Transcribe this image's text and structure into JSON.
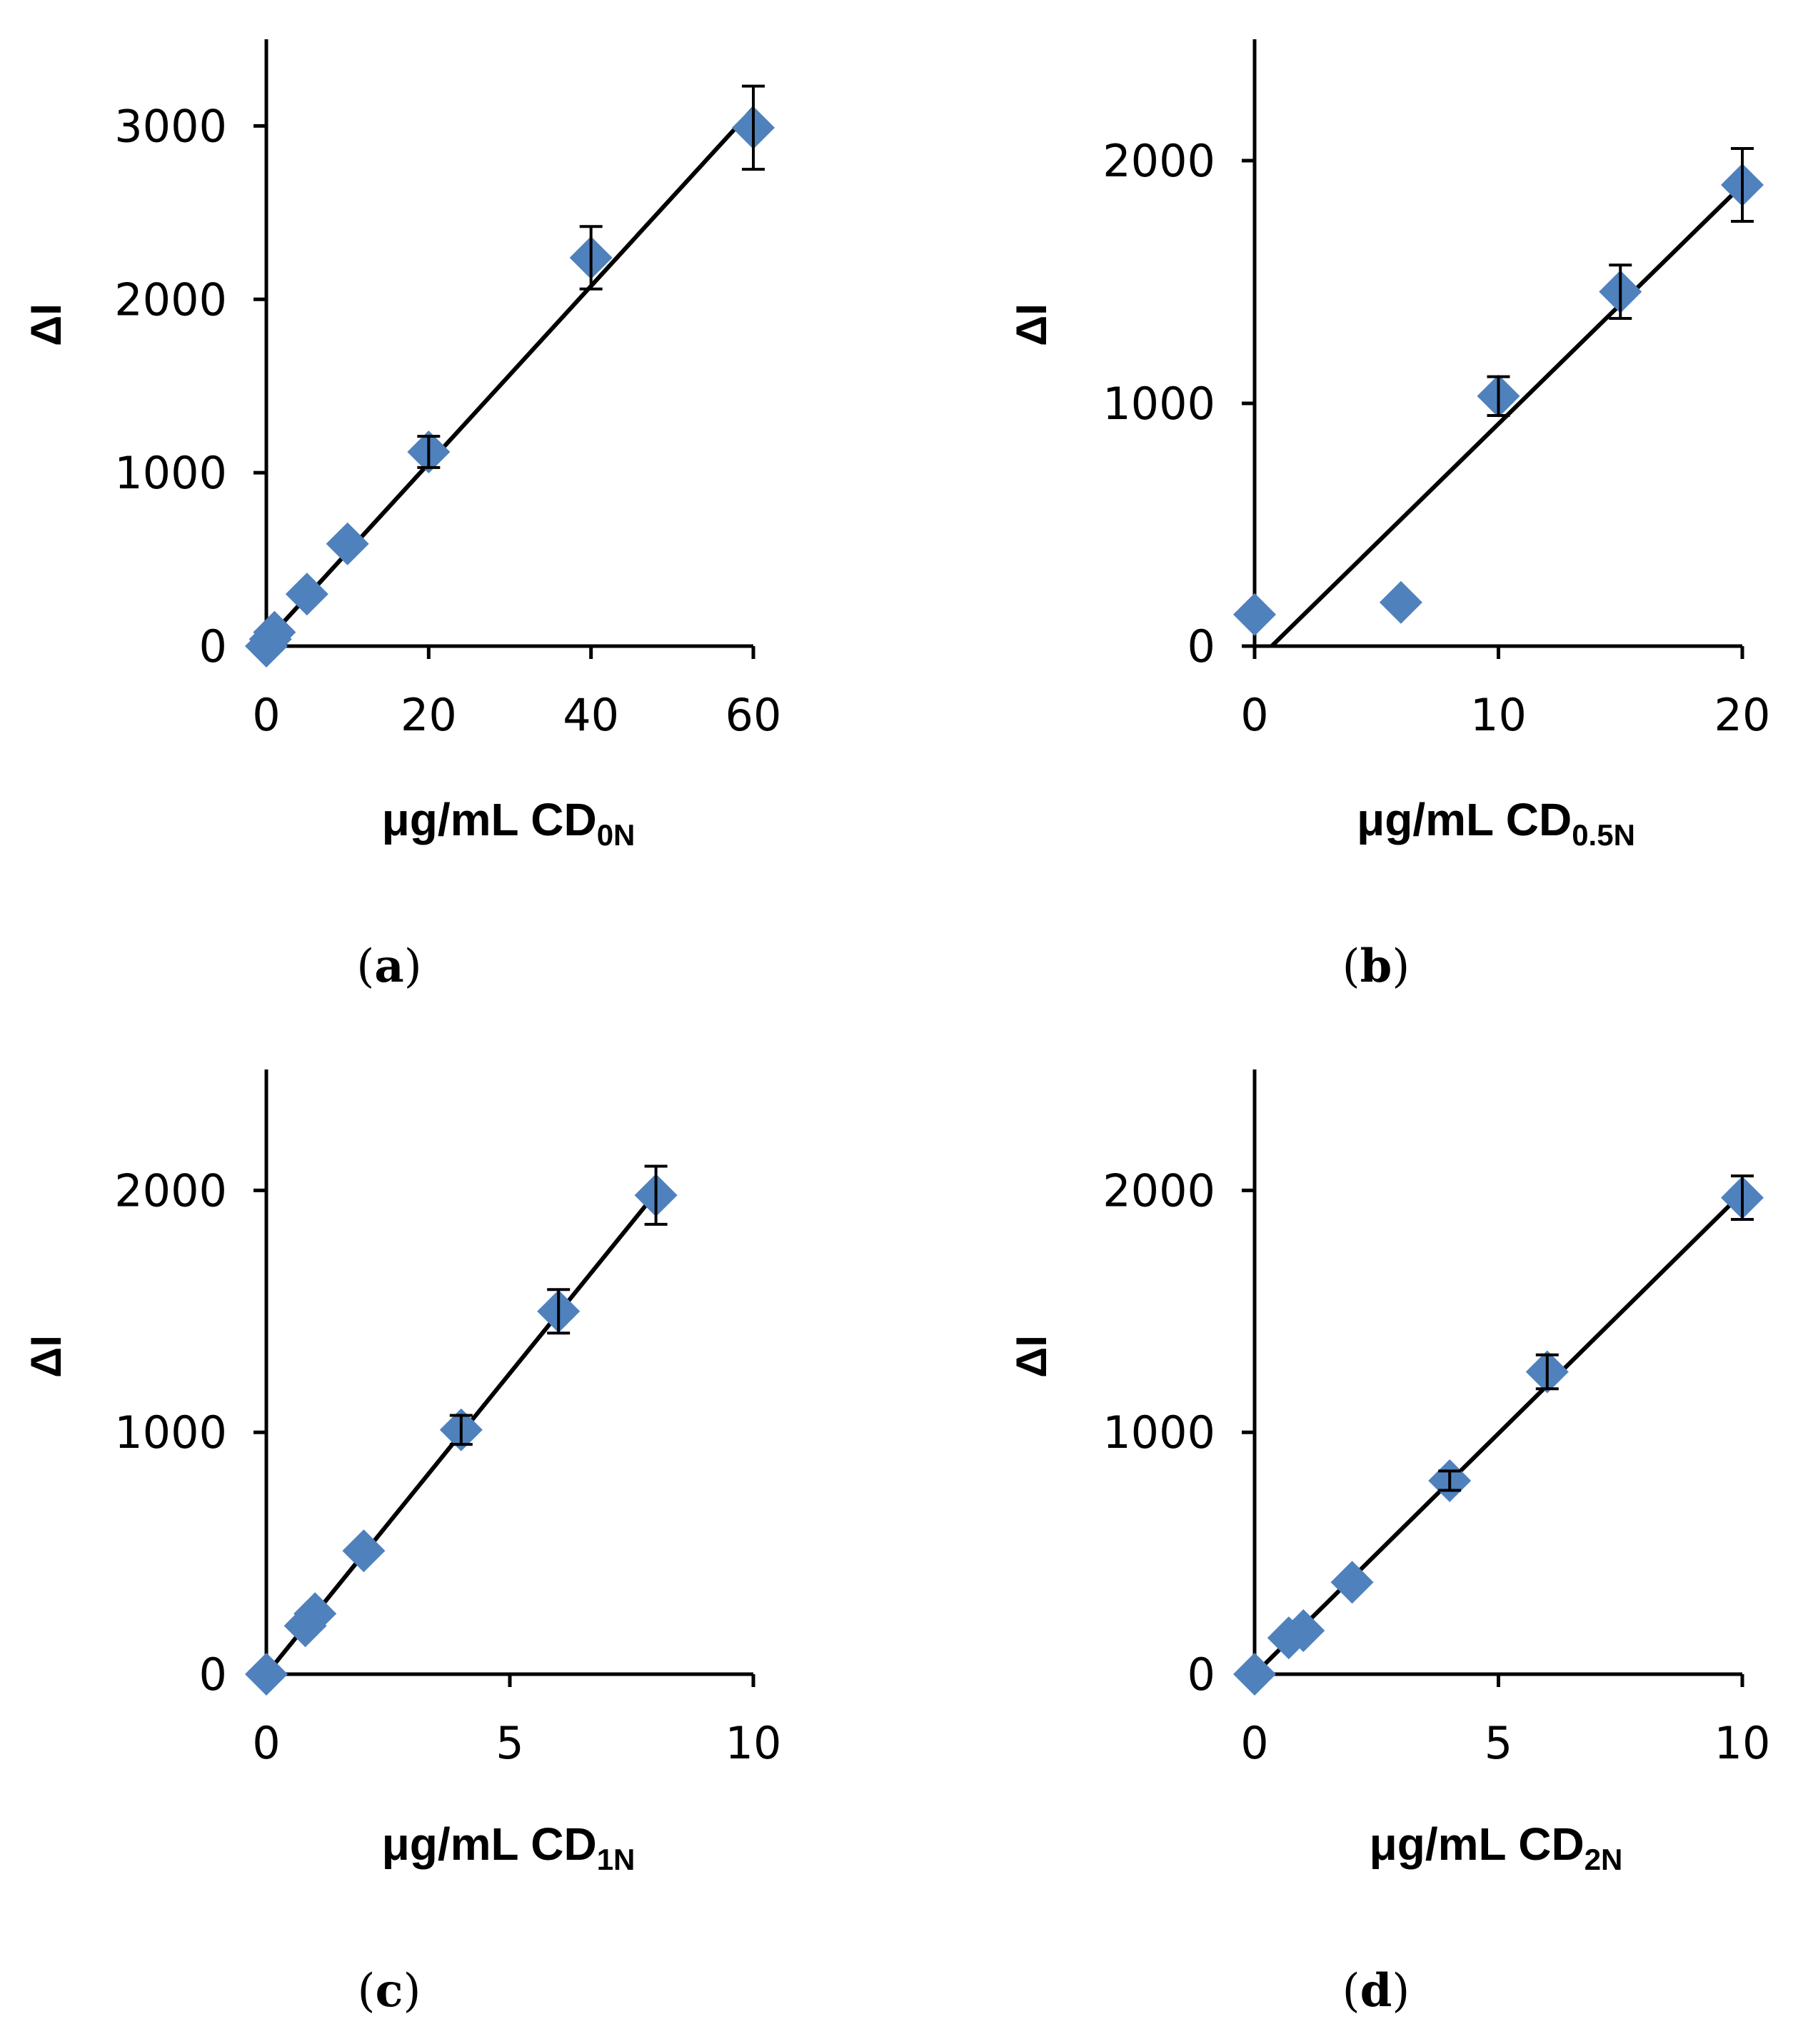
{
  "chart_data": [
    {
      "type": "scatter",
      "panel_label": "(a)",
      "panel_letter": "a",
      "ylabel": "ΔI",
      "xlabel_main": "μg/mL CD",
      "xlabel_sub": "0N",
      "xlim": [
        0,
        60
      ],
      "ylim": [
        0,
        3500
      ],
      "xticks": [
        0,
        20,
        40,
        60
      ],
      "yticks": [
        0,
        1000,
        2000,
        3000
      ],
      "x": [
        0,
        0.5,
        1,
        5,
        10,
        20,
        40,
        60
      ],
      "y": [
        0,
        40,
        80,
        300,
        590,
        1120,
        2240,
        2990
      ],
      "yerr": [
        0,
        0,
        0,
        0,
        0,
        90,
        180,
        240
      ],
      "fit": {
        "x": [
          0,
          60
        ],
        "y": [
          30,
          3100
        ]
      },
      "marker_color": "#4f81bd"
    },
    {
      "type": "scatter",
      "panel_label": "(b)",
      "panel_letter": "b",
      "ylabel": "ΔI",
      "xlabel_main": "μg/mL CD",
      "xlabel_sub": "0.5N",
      "xlim": [
        0,
        20
      ],
      "ylim": [
        0,
        2500
      ],
      "xticks": [
        0,
        10,
        20
      ],
      "yticks": [
        0,
        1000,
        2000
      ],
      "x": [
        0,
        6,
        10,
        15,
        20
      ],
      "y": [
        130,
        180,
        1030,
        1460,
        1900
      ],
      "yerr": [
        0,
        0,
        80,
        110,
        150
      ],
      "fit": {
        "x": [
          0.7,
          20
        ],
        "y": [
          0,
          1900
        ]
      },
      "marker_color": "#4f81bd"
    },
    {
      "type": "scatter",
      "panel_label": "(c)",
      "panel_letter": "c",
      "ylabel": "ΔI",
      "xlabel_main": "μg/mL CD",
      "xlabel_sub": "1N",
      "xlim": [
        0,
        10
      ],
      "ylim": [
        0,
        2500
      ],
      "xticks": [
        0,
        5,
        10
      ],
      "yticks": [
        0,
        1000,
        2000
      ],
      "x": [
        0,
        0.8,
        1,
        2,
        4,
        6,
        8
      ],
      "y": [
        0,
        200,
        250,
        510,
        1010,
        1500,
        1980
      ],
      "yerr": [
        0,
        0,
        0,
        0,
        60,
        90,
        120
      ],
      "fit": {
        "x": [
          0,
          8
        ],
        "y": [
          0,
          1990
        ]
      },
      "marker_color": "#4f81bd"
    },
    {
      "type": "scatter",
      "panel_label": "(d)",
      "panel_letter": "d",
      "ylabel": "ΔI",
      "xlabel_main": "μg/mL CD",
      "xlabel_sub": "2N",
      "xlim": [
        0,
        10
      ],
      "ylim": [
        0,
        2500
      ],
      "xticks": [
        0,
        5,
        10
      ],
      "yticks": [
        0,
        1000,
        2000
      ],
      "x": [
        0,
        0.7,
        1,
        2,
        4,
        6,
        10
      ],
      "y": [
        0,
        150,
        180,
        380,
        800,
        1250,
        1970
      ],
      "yerr": [
        0,
        0,
        0,
        0,
        40,
        70,
        90
      ],
      "fit": {
        "x": [
          0,
          10
        ],
        "y": [
          0,
          1990
        ]
      },
      "marker_color": "#4f81bd"
    }
  ]
}
